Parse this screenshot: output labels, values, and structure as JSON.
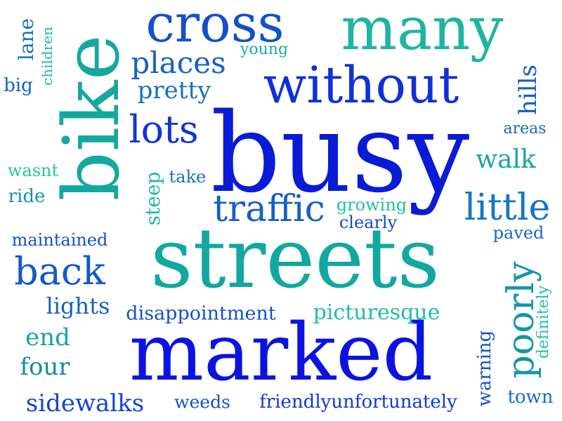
{
  "words": [
    {
      "text": "busy",
      "color": "#0a1bd6"
    },
    {
      "text": "streets",
      "color": "#12a8a0"
    },
    {
      "text": "marked",
      "color": "#0c13e0"
    },
    {
      "text": "bike",
      "color": "#14a89e"
    },
    {
      "text": "many",
      "color": "#1fb5a0"
    },
    {
      "text": "cross",
      "color": "#1451c8"
    },
    {
      "text": "without",
      "color": "#1030d8"
    },
    {
      "text": "traffic",
      "color": "#1560c4"
    },
    {
      "text": "little",
      "color": "#1476c4"
    },
    {
      "text": "lots",
      "color": "#1234d6"
    },
    {
      "text": "back",
      "color": "#125ac8"
    },
    {
      "text": "places",
      "color": "#1560c4"
    },
    {
      "text": "pretty",
      "color": "#1570c0"
    },
    {
      "text": "poorly",
      "color": "#1596aa"
    },
    {
      "text": "sidewalks",
      "color": "#1245d4"
    },
    {
      "text": "lights",
      "color": "#1560c4"
    },
    {
      "text": "disappointment",
      "color": "#1550c8"
    },
    {
      "text": "picturesque",
      "color": "#20c0a0"
    },
    {
      "text": "friendlyunfortunately",
      "color": "#1238d6"
    },
    {
      "text": "weeds",
      "color": "#1550c8"
    },
    {
      "text": "end",
      "color": "#16a4a0"
    },
    {
      "text": "four",
      "color": "#148aa8"
    },
    {
      "text": "walk",
      "color": "#1aa4a4"
    },
    {
      "text": "growing",
      "color": "#22c0a0"
    },
    {
      "text": "clearly",
      "color": "#1546cc"
    },
    {
      "text": "paved",
      "color": "#1566c6"
    },
    {
      "text": "steep",
      "color": "#1ab8a2"
    },
    {
      "text": "take",
      "color": "#1670c0"
    },
    {
      "text": "wasnt",
      "color": "#22c898"
    },
    {
      "text": "ride",
      "color": "#1590b0"
    },
    {
      "text": "maintained",
      "color": "#1250d0"
    },
    {
      "text": "areas",
      "color": "#1566c6"
    },
    {
      "text": "hills",
      "color": "#1560c4"
    },
    {
      "text": "young",
      "color": "#1aa8a4"
    },
    {
      "text": "big",
      "color": "#1560c4"
    },
    {
      "text": "lane",
      "color": "#1670c0"
    },
    {
      "text": "children",
      "color": "#22b8a0"
    },
    {
      "text": "warning",
      "color": "#1650c8"
    },
    {
      "text": "definitely",
      "color": "#22c0a0"
    },
    {
      "text": "town",
      "color": "#1570c0"
    }
  ]
}
